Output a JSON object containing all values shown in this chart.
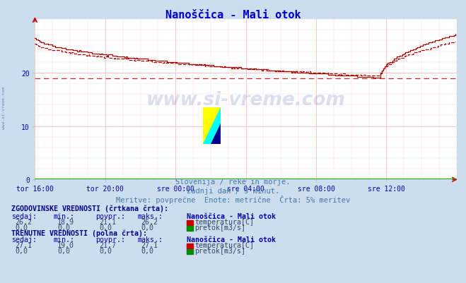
{
  "title": "Nanoščica - Mali otok",
  "subtitle1": "Slovenija / reke in morje.",
  "subtitle2": "zadnji dan / 5 minut.",
  "subtitle3": "Meritve: povprečne  Enote: metrične  Črta: 5% meritev",
  "bg_color": "#ccdded",
  "plot_bg_color": "#ffffff",
  "line_color": "#aa0000",
  "title_color": "#0000cc",
  "subtitle_color": "#4477aa",
  "label_color": "#0000aa",
  "bold_label_color": "#000088",
  "value_color": "#334466",
  "yticks": [
    0,
    10,
    20
  ],
  "ylim": [
    0,
    30
  ],
  "xlim": [
    0,
    288
  ],
  "xtick_labels": [
    "tor 16:00",
    "tor 20:00",
    "sre 00:00",
    "sre 04:00",
    "sre 08:00",
    "sre 12:00"
  ],
  "xtick_positions": [
    0,
    48,
    96,
    144,
    192,
    240
  ],
  "watermark": "www.si-vreme.com",
  "hist_sedaj": "26,2",
  "hist_min": "18,9",
  "hist_povpr": "21,1",
  "hist_maks": "26,2",
  "curr_sedaj": "27,1",
  "curr_min": "19,0",
  "curr_povpr": "21,7",
  "curr_maks": "27,1",
  "pretok_vals": "0,0",
  "avg_hist": 18.9,
  "avg_curr": 19.0,
  "temp_color": "#cc0000",
  "pretok_color": "#008800"
}
